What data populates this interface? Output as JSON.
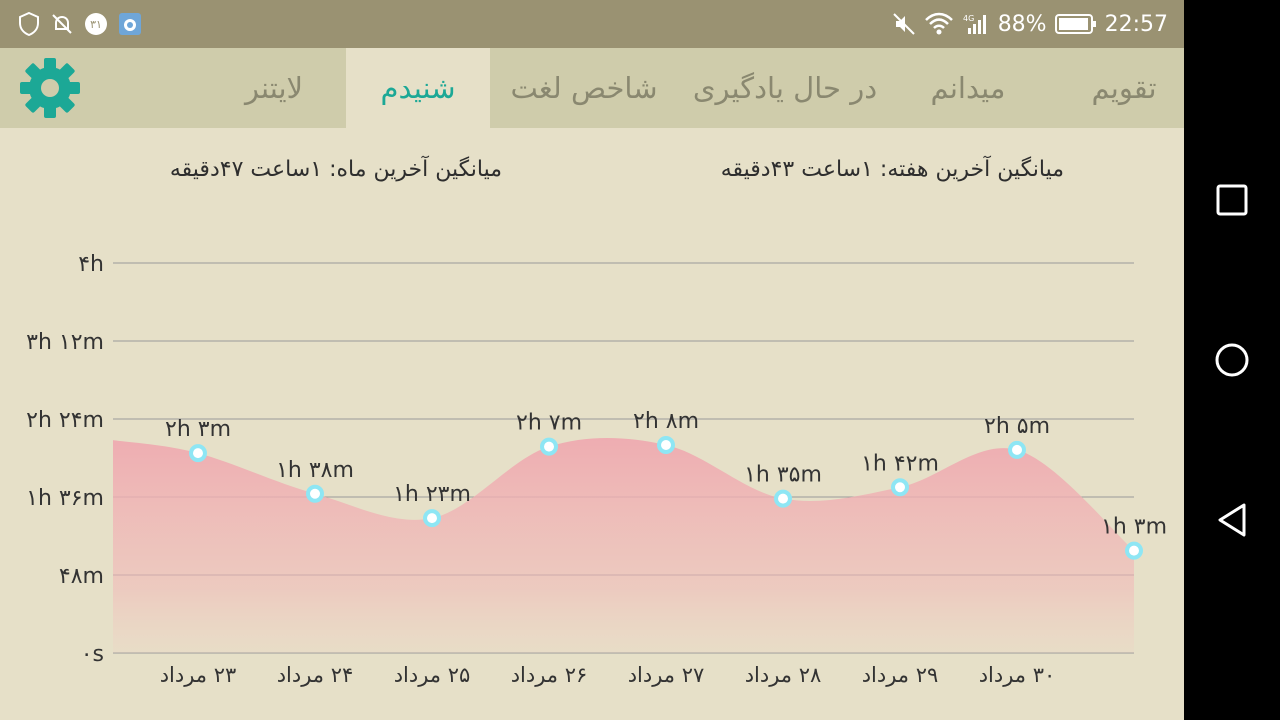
{
  "status_bar": {
    "left_icons": [
      "shield-icon",
      "notifications-off-icon",
      "calendar-badge-icon",
      "app-notification-icon"
    ],
    "calendar_badge": "۳۱",
    "battery": "88%",
    "time": "22:57",
    "right_icons": [
      "mute-icon",
      "wifi-icon",
      "signal-4g-icon",
      "battery-icon"
    ],
    "signal_label": "4G"
  },
  "tabs": [
    {
      "label": "تقویم",
      "active": false
    },
    {
      "label": "میدانم",
      "active": false
    },
    {
      "label": "در حال یادگیری",
      "active": false
    },
    {
      "label": "شاخص لغت",
      "active": false
    },
    {
      "label": "شنیدم",
      "active": true
    },
    {
      "label": "لایتنر",
      "active": false
    }
  ],
  "settings_icon": "gear-icon",
  "stats": {
    "week": "میانگین آخرین هفته: ۱ساعت  ۴۳دقیقه",
    "month": "میانگین آخرین ماه: ۱ساعت  ۴۷دقیقه"
  },
  "chart_data": {
    "type": "area",
    "y_ticks": [
      "۰s",
      "۴۸m",
      "۱h ۳۶m",
      "۲h ۲۴m",
      "۳h ۱۲m",
      "۴h"
    ],
    "ylim_minutes": [
      0,
      240
    ],
    "x_labels": [
      "۲۳ مرداد",
      "۲۴ مرداد",
      "۲۵ مرداد",
      "۲۶ مرداد",
      "۲۷ مرداد",
      "۲۸ مرداد",
      "۲۹ مرداد",
      "۳۰ مرداد"
    ],
    "points": [
      {
        "label": "۲h ۳m",
        "minutes": 123
      },
      {
        "label": "۱h ۳۸m",
        "minutes": 98
      },
      {
        "label": "۱h ۲۳m",
        "minutes": 83
      },
      {
        "label": "۲h ۷m",
        "minutes": 127
      },
      {
        "label": "۲h ۸m",
        "minutes": 128
      },
      {
        "label": "۱h ۳۵m",
        "minutes": 95
      },
      {
        "label": "۱h ۴۲m",
        "minutes": 102
      },
      {
        "label": "۲h ۵m",
        "minutes": 125
      },
      {
        "label": "۱h ۳m",
        "minutes": 63
      }
    ],
    "grid": true,
    "colors": {
      "fill": "#eeaab0",
      "marker": "#8ee6f4",
      "grid": "#9a9a9a"
    }
  },
  "nav_bar": {
    "buttons": [
      "recent-apps-icon",
      "home-icon",
      "back-icon"
    ]
  }
}
